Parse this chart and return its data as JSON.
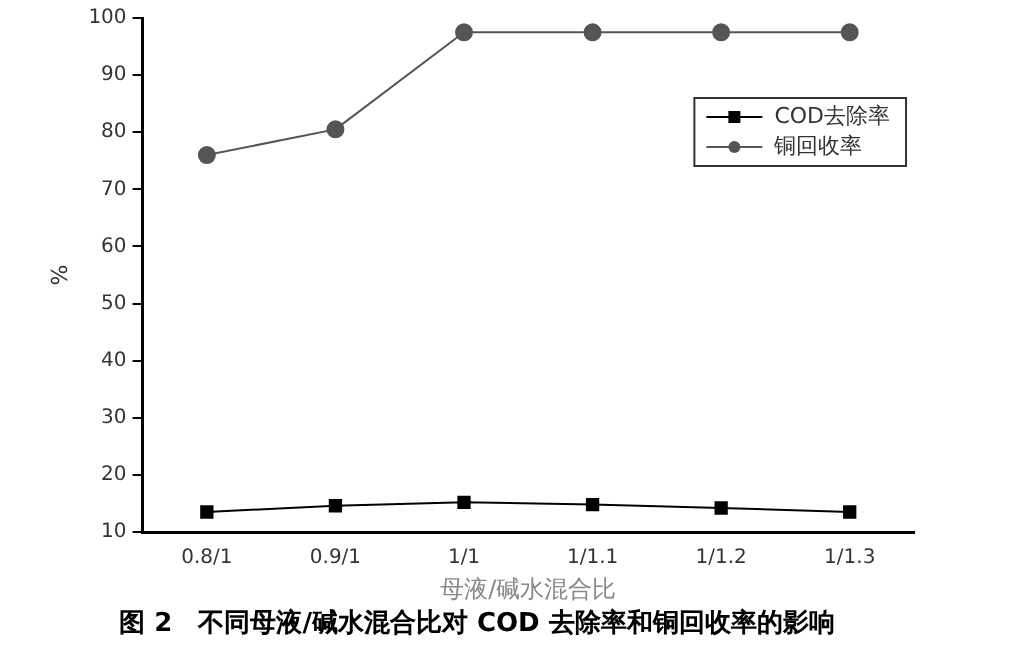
{
  "chart_data": {
    "type": "line",
    "title": "图 2　不同母液/碱水混合比对 COD 去除率和铜回收率的影响",
    "xlabel": "母液/碱水混合比",
    "ylabel": "%",
    "categories": [
      "0.8/1",
      "0.9/1",
      "1/1",
      "1/1.1",
      "1/1.2",
      "1/1.3"
    ],
    "series": [
      {
        "name": "COD去除率",
        "color": "#000000",
        "marker": "square",
        "values": [
          13.5,
          14.6,
          15.2,
          14.8,
          14.2,
          13.5
        ]
      },
      {
        "name": "铜回收率",
        "color": "#555555",
        "marker": "circle",
        "values": [
          76,
          80.5,
          97.5,
          97.5,
          97.5,
          97.5
        ]
      }
    ],
    "ylim": [
      10,
      100
    ],
    "yticks": [
      10,
      20,
      30,
      40,
      50,
      60,
      70,
      80,
      90,
      100
    ],
    "grid": false,
    "legend": "top right",
    "line_style": "solid"
  }
}
